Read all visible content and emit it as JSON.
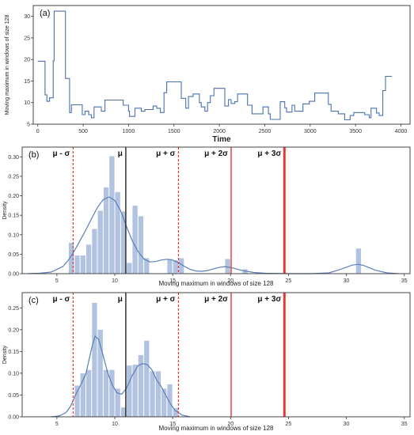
{
  "chart_data": [
    {
      "panel": "(a)",
      "type": "line",
      "xlabel": "Time",
      "ylabel": "Moving maximum in windows of size 128",
      "xlim": [
        -50,
        4100
      ],
      "ylim": [
        5,
        32.5
      ],
      "xticks": [
        0,
        500,
        1000,
        1500,
        2000,
        2500,
        3000,
        3500,
        4000
      ],
      "yticks": [
        5,
        10,
        15,
        20,
        25,
        30
      ],
      "grid": false,
      "color": "#4a72b0",
      "points": [
        [
          0,
          19.6
        ],
        [
          80,
          19.6
        ],
        [
          80,
          11.8
        ],
        [
          100,
          11.8
        ],
        [
          100,
          10.3
        ],
        [
          130,
          10.3
        ],
        [
          130,
          11.1
        ],
        [
          170,
          11.1
        ],
        [
          170,
          19.7
        ],
        [
          180,
          19.7
        ],
        [
          180,
          31.2
        ],
        [
          305,
          31.2
        ],
        [
          305,
          15.6
        ],
        [
          350,
          15.6
        ],
        [
          350,
          7.7
        ],
        [
          370,
          7.7
        ],
        [
          370,
          9.5
        ],
        [
          490,
          9.5
        ],
        [
          490,
          7.2
        ],
        [
          520,
          7.2
        ],
        [
          520,
          8.0
        ],
        [
          560,
          8.0
        ],
        [
          560,
          7.2
        ],
        [
          590,
          7.2
        ],
        [
          590,
          6.5
        ],
        [
          620,
          6.5
        ],
        [
          620,
          9.0
        ],
        [
          700,
          9.0
        ],
        [
          700,
          8.0
        ],
        [
          740,
          8.0
        ],
        [
          740,
          10.6
        ],
        [
          940,
          10.6
        ],
        [
          940,
          9.4
        ],
        [
          1000,
          9.4
        ],
        [
          1000,
          8.0
        ],
        [
          1010,
          8.0
        ],
        [
          1010,
          6.8
        ],
        [
          1070,
          6.8
        ],
        [
          1070,
          8.7
        ],
        [
          1140,
          8.7
        ],
        [
          1140,
          8.0
        ],
        [
          1180,
          8.0
        ],
        [
          1180,
          8.4
        ],
        [
          1270,
          8.4
        ],
        [
          1270,
          9.2
        ],
        [
          1310,
          9.2
        ],
        [
          1310,
          8.7
        ],
        [
          1350,
          8.7
        ],
        [
          1350,
          7.7
        ],
        [
          1390,
          7.7
        ],
        [
          1390,
          12.3
        ],
        [
          1420,
          12.3
        ],
        [
          1420,
          14.8
        ],
        [
          1580,
          14.8
        ],
        [
          1580,
          11.0
        ],
        [
          1630,
          11.0
        ],
        [
          1630,
          8.7
        ],
        [
          1660,
          8.7
        ],
        [
          1660,
          11.4
        ],
        [
          1710,
          11.4
        ],
        [
          1710,
          12.0
        ],
        [
          1780,
          12.0
        ],
        [
          1780,
          10.0
        ],
        [
          1800,
          10.0
        ],
        [
          1800,
          9.0
        ],
        [
          1840,
          9.0
        ],
        [
          1840,
          8.0
        ],
        [
          1870,
          8.0
        ],
        [
          1870,
          10.0
        ],
        [
          1900,
          10.0
        ],
        [
          1900,
          11.6
        ],
        [
          1940,
          11.6
        ],
        [
          1940,
          13.3
        ],
        [
          2060,
          13.3
        ],
        [
          2060,
          9.2
        ],
        [
          2100,
          9.2
        ],
        [
          2100,
          10.7
        ],
        [
          2130,
          10.7
        ],
        [
          2130,
          9.8
        ],
        [
          2170,
          9.8
        ],
        [
          2170,
          10.2
        ],
        [
          2200,
          10.2
        ],
        [
          2200,
          12.0
        ],
        [
          2310,
          12.0
        ],
        [
          2310,
          9.4
        ],
        [
          2360,
          9.4
        ],
        [
          2360,
          7.4
        ],
        [
          2480,
          7.4
        ],
        [
          2480,
          9.0
        ],
        [
          2540,
          9.0
        ],
        [
          2540,
          7.4
        ],
        [
          2560,
          7.4
        ],
        [
          2560,
          6.1
        ],
        [
          2670,
          6.1
        ],
        [
          2670,
          10.2
        ],
        [
          2720,
          10.2
        ],
        [
          2720,
          8.8
        ],
        [
          2740,
          8.8
        ],
        [
          2740,
          7.8
        ],
        [
          2800,
          7.8
        ],
        [
          2800,
          9.4
        ],
        [
          2830,
          9.4
        ],
        [
          2830,
          8.0
        ],
        [
          2920,
          8.0
        ],
        [
          2920,
          9.7
        ],
        [
          2990,
          9.7
        ],
        [
          2990,
          10.3
        ],
        [
          3050,
          10.3
        ],
        [
          3050,
          12.2
        ],
        [
          3200,
          12.2
        ],
        [
          3200,
          9.6
        ],
        [
          3230,
          9.6
        ],
        [
          3230,
          8.0
        ],
        [
          3310,
          8.0
        ],
        [
          3310,
          7.4
        ],
        [
          3380,
          7.4
        ],
        [
          3380,
          6.0
        ],
        [
          3440,
          6.0
        ],
        [
          3440,
          7.0
        ],
        [
          3480,
          7.0
        ],
        [
          3480,
          7.7
        ],
        [
          3600,
          7.7
        ],
        [
          3600,
          7.2
        ],
        [
          3650,
          7.2
        ],
        [
          3650,
          6.5
        ],
        [
          3670,
          6.5
        ],
        [
          3670,
          8.7
        ],
        [
          3730,
          8.7
        ],
        [
          3730,
          7.6
        ],
        [
          3760,
          7.6
        ],
        [
          3760,
          7.0
        ],
        [
          3800,
          7.0
        ],
        [
          3800,
          12.8
        ],
        [
          3830,
          12.8
        ],
        [
          3830,
          16.1
        ],
        [
          3900,
          16.1
        ]
      ]
    },
    {
      "panel": "(b)",
      "type": "histogram",
      "xlabel": "Moving maximum in windows of size 128",
      "ylabel": "Density",
      "xlim": [
        2,
        35.5
      ],
      "ylim": [
        0,
        0.325
      ],
      "xticks": [
        5,
        10,
        15,
        20,
        25,
        30,
        35
      ],
      "yticks": [
        0.0,
        0.05,
        0.1,
        0.15,
        0.2,
        0.25,
        0.3
      ],
      "bar_color": "#b1c3e0",
      "kde_color": "#5b7fb8",
      "bins": [
        {
          "x0": 6.0,
          "x1": 6.5,
          "value": 0.08
        },
        {
          "x0": 6.5,
          "x1": 7.0,
          "value": 0.047
        },
        {
          "x0": 7.0,
          "x1": 7.5,
          "value": 0.047
        },
        {
          "x0": 7.5,
          "x1": 8.0,
          "value": 0.075
        },
        {
          "x0": 8.0,
          "x1": 8.5,
          "value": 0.115
        },
        {
          "x0": 8.5,
          "x1": 9.0,
          "value": 0.162
        },
        {
          "x0": 9.0,
          "x1": 9.5,
          "value": 0.222
        },
        {
          "x0": 9.5,
          "x1": 10.0,
          "value": 0.302
        },
        {
          "x0": 10.0,
          "x1": 10.5,
          "value": 0.21
        },
        {
          "x0": 10.5,
          "x1": 11.0,
          "value": 0.16
        },
        {
          "x0": 11.0,
          "x1": 11.5,
          "value": 0.028
        },
        {
          "x0": 11.5,
          "x1": 12.0,
          "value": 0.175
        },
        {
          "x0": 12.0,
          "x1": 12.5,
          "value": 0.148
        },
        {
          "x0": 12.5,
          "x1": 13.0,
          "value": 0.04
        },
        {
          "x0": 14.5,
          "x1": 15.0,
          "value": 0.038
        },
        {
          "x0": 15.0,
          "x1": 15.5,
          "value": 0.035
        },
        {
          "x0": 15.5,
          "x1": 16.0,
          "value": 0.04
        },
        {
          "x0": 19.5,
          "x1": 20.0,
          "value": 0.038
        },
        {
          "x0": 21.0,
          "x1": 21.5,
          "value": 0.012
        },
        {
          "x0": 30.8,
          "x1": 31.3,
          "value": 0.065
        }
      ],
      "kde": [
        [
          2.5,
          0.0
        ],
        [
          3.5,
          0.001
        ],
        [
          4.5,
          0.004
        ],
        [
          5.5,
          0.018
        ],
        [
          6.0,
          0.035
        ],
        [
          6.5,
          0.058
        ],
        [
          7.0,
          0.085
        ],
        [
          7.5,
          0.112
        ],
        [
          8.0,
          0.142
        ],
        [
          8.5,
          0.17
        ],
        [
          9.0,
          0.19
        ],
        [
          9.5,
          0.197
        ],
        [
          10.0,
          0.188
        ],
        [
          10.5,
          0.162
        ],
        [
          11.0,
          0.122
        ],
        [
          11.5,
          0.085
        ],
        [
          12.0,
          0.057
        ],
        [
          12.5,
          0.038
        ],
        [
          13.0,
          0.03
        ],
        [
          13.5,
          0.031
        ],
        [
          14.0,
          0.035
        ],
        [
          14.5,
          0.037
        ],
        [
          15.0,
          0.035
        ],
        [
          15.5,
          0.028
        ],
        [
          16.0,
          0.019
        ],
        [
          16.5,
          0.011
        ],
        [
          17.0,
          0.007
        ],
        [
          17.5,
          0.006
        ],
        [
          18.0,
          0.008
        ],
        [
          18.5,
          0.012
        ],
        [
          19.0,
          0.016
        ],
        [
          19.5,
          0.018
        ],
        [
          20.0,
          0.016
        ],
        [
          20.5,
          0.012
        ],
        [
          21.0,
          0.008
        ],
        [
          22.0,
          0.003
        ],
        [
          23.0,
          0.001
        ],
        [
          25.0,
          0.0
        ],
        [
          27.0,
          0.0
        ],
        [
          28.5,
          0.002
        ],
        [
          29.5,
          0.011
        ],
        [
          30.5,
          0.022
        ],
        [
          31.0,
          0.024
        ],
        [
          31.5,
          0.021
        ],
        [
          32.5,
          0.009
        ],
        [
          33.5,
          0.002
        ],
        [
          34.5,
          0.0
        ]
      ],
      "vlines": [
        {
          "x": 6.4,
          "label": "μ - σ",
          "style": "dashed",
          "color": "#e53935",
          "width": 1.2
        },
        {
          "x": 10.95,
          "label": "μ",
          "style": "solid",
          "color": "#222222",
          "width": 1.4
        },
        {
          "x": 15.5,
          "label": "μ + σ",
          "style": "dashed",
          "color": "#e53935",
          "width": 1.2
        },
        {
          "x": 20.05,
          "label": "μ + 2σ",
          "style": "solid",
          "color": "#e53935",
          "width": 1.4
        },
        {
          "x": 24.65,
          "label": "μ + 3σ",
          "style": "solid",
          "color": "#e53935",
          "width": 3
        }
      ]
    },
    {
      "panel": "(c)",
      "type": "histogram",
      "xlabel": "Moving maximum in windows of size 128",
      "ylabel": "Density",
      "xlim": [
        2,
        35.5
      ],
      "ylim": [
        0,
        0.285
      ],
      "xticks": [
        5,
        10,
        15,
        20,
        25,
        30,
        35
      ],
      "yticks": [
        0.0,
        0.05,
        0.1,
        0.15,
        0.2,
        0.25
      ],
      "bar_color": "#b1c3e0",
      "kde_color": "#5b7fb8",
      "bins": [
        {
          "x0": 6.5,
          "x1": 7.0,
          "value": 0.072
        },
        {
          "x0": 7.0,
          "x1": 7.5,
          "value": 0.1
        },
        {
          "x0": 7.5,
          "x1": 8.0,
          "value": 0.108
        },
        {
          "x0": 8.0,
          "x1": 8.5,
          "value": 0.262
        },
        {
          "x0": 8.5,
          "x1": 9.0,
          "value": 0.2
        },
        {
          "x0": 9.0,
          "x1": 9.5,
          "value": 0.108
        },
        {
          "x0": 9.5,
          "x1": 10.0,
          "value": 0.108
        },
        {
          "x0": 10.0,
          "x1": 10.5,
          "value": 0.065
        },
        {
          "x0": 10.5,
          "x1": 11.0,
          "value": 0.022
        },
        {
          "x0": 11.0,
          "x1": 11.5,
          "value": 0.118
        },
        {
          "x0": 11.5,
          "x1": 12.0,
          "value": 0.12
        },
        {
          "x0": 12.0,
          "x1": 12.5,
          "value": 0.142
        },
        {
          "x0": 12.5,
          "x1": 13.0,
          "value": 0.175
        },
        {
          "x0": 13.0,
          "x1": 13.5,
          "value": 0.105
        },
        {
          "x0": 13.5,
          "x1": 14.0,
          "value": 0.105
        },
        {
          "x0": 14.0,
          "x1": 14.5,
          "value": 0.065
        },
        {
          "x0": 14.5,
          "x1": 15.0,
          "value": 0.075
        },
        {
          "x0": 15.0,
          "x1": 15.5,
          "value": 0.02
        }
      ],
      "kde": [
        [
          4.5,
          0.0
        ],
        [
          5.2,
          0.002
        ],
        [
          5.8,
          0.01
        ],
        [
          6.2,
          0.025
        ],
        [
          6.6,
          0.05
        ],
        [
          7.0,
          0.07
        ],
        [
          7.5,
          0.098
        ],
        [
          8.0,
          0.158
        ],
        [
          8.3,
          0.185
        ],
        [
          8.6,
          0.178
        ],
        [
          9.0,
          0.14
        ],
        [
          9.4,
          0.1
        ],
        [
          9.8,
          0.072
        ],
        [
          10.2,
          0.055
        ],
        [
          10.6,
          0.052
        ],
        [
          11.0,
          0.065
        ],
        [
          11.5,
          0.095
        ],
        [
          12.0,
          0.117
        ],
        [
          12.4,
          0.122
        ],
        [
          12.8,
          0.12
        ],
        [
          13.2,
          0.108
        ],
        [
          13.6,
          0.085
        ],
        [
          14.0,
          0.07
        ],
        [
          14.4,
          0.05
        ],
        [
          14.8,
          0.03
        ],
        [
          15.2,
          0.015
        ],
        [
          15.8,
          0.004
        ],
        [
          16.5,
          0.0
        ]
      ],
      "vlines": [
        {
          "x": 6.4,
          "label": "μ - σ",
          "style": "dashed",
          "color": "#e53935",
          "width": 1.2
        },
        {
          "x": 10.95,
          "label": "μ",
          "style": "solid",
          "color": "#222222",
          "width": 1.4
        },
        {
          "x": 15.5,
          "label": "μ + σ",
          "style": "dashed",
          "color": "#e53935",
          "width": 1.2
        },
        {
          "x": 20.05,
          "label": "μ + 2σ",
          "style": "solid",
          "color": "#e53935",
          "width": 1.4
        },
        {
          "x": 24.65,
          "label": "μ + 3σ",
          "style": "solid",
          "color": "#e53935",
          "width": 3
        }
      ]
    }
  ]
}
